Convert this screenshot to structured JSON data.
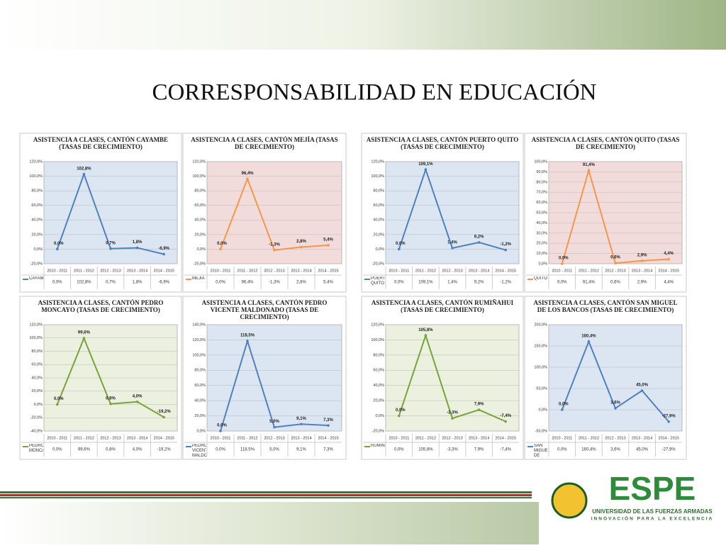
{
  "title": "CORRESPONSABILIDAD EN EDUCACIÓN",
  "logo": {
    "name": "ESPE",
    "university": "UNIVERSIDAD DE LAS FUERZAS ARMADAS",
    "motto": "INNOVACIÓN PARA LA EXCELENCIA"
  },
  "chart_data": [
    {
      "type": "line",
      "title": "ASISTENCIA A CLASES, CANTÓN CAYAMBE (TASAS DE CRECIMIENTO)",
      "categories": [
        "2010 - 2011",
        "2011 - 2012",
        "2012 - 2013",
        "2013 - 2014",
        "2014 - 2015"
      ],
      "series": [
        {
          "name": "CAYAMBE",
          "color": "#4f81bd",
          "values": [
            0,
            102.8,
            0.7,
            1.8,
            -6.9
          ],
          "value_labels": [
            "0,0%",
            "102,8%",
            "0,7%",
            "1,8%",
            "-6,9%"
          ]
        }
      ],
      "plot_background": "#dce6f2",
      "ylim": [
        -20,
        120
      ],
      "yticks": [
        {
          "value": -20,
          "label": "-20,0%"
        },
        {
          "value": 0,
          "label": "0,0%"
        },
        {
          "value": 20,
          "label": "20,0%"
        },
        {
          "value": 40,
          "label": "40,0%"
        },
        {
          "value": 60,
          "label": "60,0%"
        },
        {
          "value": 80,
          "label": "80,0%"
        },
        {
          "value": 100,
          "label": "100,0%"
        },
        {
          "value": 120,
          "label": "120,0%"
        }
      ],
      "grid": true
    },
    {
      "type": "line",
      "title": "ASISTENCIA A CLASES, CANTÓN MEJÍA (TASAS DE CRECIMIENTO)",
      "categories": [
        "2010 - 2011",
        "2011 - 2012",
        "2012 - 2013",
        "2013 - 2014",
        "2014 - 2015"
      ],
      "series": [
        {
          "name": "MEJIA",
          "color": "#f79646",
          "values": [
            0,
            96.4,
            -1.3,
            2.8,
            5.4
          ],
          "value_labels": [
            "0,0%",
            "96,4%",
            "-1,3%",
            "2,8%",
            "5,4%"
          ]
        }
      ],
      "plot_background": "#f2dcdb",
      "ylim": [
        -20,
        120
      ],
      "yticks": [
        {
          "value": -20,
          "label": "-20,0%"
        },
        {
          "value": 0,
          "label": "0,0%"
        },
        {
          "value": 20,
          "label": "20,0%"
        },
        {
          "value": 40,
          "label": "40,0%"
        },
        {
          "value": 60,
          "label": "60,0%"
        },
        {
          "value": 80,
          "label": "80,0%"
        },
        {
          "value": 100,
          "label": "100,0%"
        },
        {
          "value": 120,
          "label": "120,0%"
        }
      ],
      "grid": true
    },
    {
      "type": "line",
      "title": "ASISTENCIA A CLASES, CANTÓN PUERTO QUITO (TASAS DE CRECIMIENTO)",
      "categories": [
        "2010 - 2011",
        "2011 - 2012",
        "2012 - 2013",
        "2013 - 2014",
        "2014 - 2015"
      ],
      "series": [
        {
          "name": "PUERTO QUITO",
          "color": "#4f81bd",
          "values": [
            0,
            109.1,
            1.4,
            9.2,
            -1.2
          ],
          "value_labels": [
            "0,0%",
            "109,1%",
            "1,4%",
            "9,2%",
            "-1,2%"
          ]
        }
      ],
      "plot_background": "#dce6f2",
      "ylim": [
        -20,
        120
      ],
      "yticks": [
        {
          "value": -20,
          "label": "-20,0%"
        },
        {
          "value": 0,
          "label": "0,0%"
        },
        {
          "value": 20,
          "label": "20,0%"
        },
        {
          "value": 40,
          "label": "40,0%"
        },
        {
          "value": 60,
          "label": "60,0%"
        },
        {
          "value": 80,
          "label": "80,0%"
        },
        {
          "value": 100,
          "label": "100,0%"
        },
        {
          "value": 120,
          "label": "120,0%"
        }
      ],
      "grid": true
    },
    {
      "type": "line",
      "title": "ASISTENCIA A CLASES, CANTÓN QUITO (TASAS DE CRECIMIENTO)",
      "categories": [
        "2010 - 2011",
        "2011 - 2012",
        "2012 - 2013",
        "2013 - 2014",
        "2014 - 2015"
      ],
      "series": [
        {
          "name": "QUITO",
          "color": "#f79646",
          "values": [
            0,
            91.4,
            0.6,
            2.9,
            4.4
          ],
          "value_labels": [
            "0,0%",
            "91,4%",
            "0,6%",
            "2,9%",
            "4,4%"
          ]
        }
      ],
      "plot_background": "#f2dcdb",
      "ylim": [
        0,
        100
      ],
      "yticks": [
        {
          "value": 0,
          "label": "0,0%"
        },
        {
          "value": 10,
          "label": "10,0%"
        },
        {
          "value": 20,
          "label": "20,0%"
        },
        {
          "value": 30,
          "label": "30,0%"
        },
        {
          "value": 40,
          "label": "40,0%"
        },
        {
          "value": 50,
          "label": "50,0%"
        },
        {
          "value": 60,
          "label": "60,0%"
        },
        {
          "value": 70,
          "label": "70,0%"
        },
        {
          "value": 80,
          "label": "80,0%"
        },
        {
          "value": 90,
          "label": "90,0%"
        },
        {
          "value": 100,
          "label": "100,0%"
        }
      ],
      "grid": true
    },
    {
      "type": "line",
      "title": "ASISTENCIA A CLASES, CANTÓN PEDRO MONCAYO (TASAS DE CRECIMIENTO)",
      "categories": [
        "2010 - 2011",
        "2011 - 2012",
        "2012 - 2013",
        "2013 - 2014",
        "2014 - 2015"
      ],
      "series": [
        {
          "name": "PEDRO MONCAYO",
          "color": "#77a33a",
          "values": [
            0,
            99.6,
            0.8,
            4.0,
            -19.2
          ],
          "value_labels": [
            "0,0%",
            "99,6%",
            "0,8%",
            "4,0%",
            "-19,2%"
          ]
        }
      ],
      "plot_background": "#ebf1de",
      "ylim": [
        -40,
        120
      ],
      "yticks": [
        {
          "value": -40,
          "label": "-40,0%"
        },
        {
          "value": -20,
          "label": "-20,0%"
        },
        {
          "value": 0,
          "label": "0,0%"
        },
        {
          "value": 20,
          "label": "20,0%"
        },
        {
          "value": 40,
          "label": "40,0%"
        },
        {
          "value": 60,
          "label": "60,0%"
        },
        {
          "value": 80,
          "label": "80,0%"
        },
        {
          "value": 100,
          "label": "100,0%"
        },
        {
          "value": 120,
          "label": "120,0%"
        }
      ],
      "grid": true
    },
    {
      "type": "line",
      "title": "ASISTENCIA A CLASES, CANTÓN PEDRO VICENTE MALDONADO (TASAS DE CRECIMIENTO)",
      "categories": [
        "2010 - 2011",
        "2011 - 2012",
        "2012 - 2013",
        "2013 - 2014",
        "2014 - 2015"
      ],
      "series": [
        {
          "name": "PEDRO VICENTE MALDONADO",
          "color": "#4f81bd",
          "values": [
            0,
            118.5,
            5.0,
            9.1,
            7.3
          ],
          "value_labels": [
            "0,0%",
            "118,5%",
            "5,0%",
            "9,1%",
            "7,3%"
          ]
        }
      ],
      "plot_background": "#dce6f2",
      "ylim": [
        0,
        140
      ],
      "yticks": [
        {
          "value": 0,
          "label": "0,0%"
        },
        {
          "value": 20,
          "label": "20,0%"
        },
        {
          "value": 40,
          "label": "40,0%"
        },
        {
          "value": 60,
          "label": "60,0%"
        },
        {
          "value": 80,
          "label": "80,0%"
        },
        {
          "value": 100,
          "label": "100,0%"
        },
        {
          "value": 120,
          "label": "120,0%"
        },
        {
          "value": 140,
          "label": "140,0%"
        }
      ],
      "grid": true
    },
    {
      "type": "line",
      "title": "ASISTENCIA A CLASES, CANTÓN RUMIÑAHUI (TASAS DE CRECIMIENTO)",
      "categories": [
        "2010 - 2011",
        "2011 - 2012",
        "2012 - 2013",
        "2013 - 2014",
        "2014 - 2015"
      ],
      "series": [
        {
          "name": "RUMIÑAHUI",
          "color": "#77a33a",
          "values": [
            0,
            105.8,
            -3.3,
            7.9,
            -7.4
          ],
          "value_labels": [
            "0,0%",
            "105,8%",
            "-3,3%",
            "7,9%",
            "-7,4%"
          ]
        }
      ],
      "plot_background": "#ebf1de",
      "ylim": [
        -20,
        120
      ],
      "yticks": [
        {
          "value": -20,
          "label": "-20,0%"
        },
        {
          "value": 0,
          "label": "0,0%"
        },
        {
          "value": 20,
          "label": "20,0%"
        },
        {
          "value": 40,
          "label": "40,0%"
        },
        {
          "value": 60,
          "label": "60,0%"
        },
        {
          "value": 80,
          "label": "80,0%"
        },
        {
          "value": 100,
          "label": "100,0%"
        },
        {
          "value": 120,
          "label": "120,0%"
        }
      ],
      "grid": true
    },
    {
      "type": "line",
      "title": "ASISTENCIA A CLASES, CANTÓN SAN MIGUEL DE LOS BANCOS (TASAS DE CRECIMIENTO)",
      "categories": [
        "2010 - 2011",
        "2011 - 2012",
        "2012 - 2013",
        "2013 - 2014",
        "2014 - 2015"
      ],
      "series": [
        {
          "name": "SAN MIGUEL DE LOS BANCOS",
          "color": "#4f81bd",
          "values": [
            0,
            160.4,
            3.6,
            45.0,
            -27.9
          ],
          "value_labels": [
            "0,0%",
            "160,4%",
            "3,6%",
            "45,0%",
            "-27,9%"
          ]
        }
      ],
      "plot_background": "#dce6f2",
      "ylim": [
        -50,
        200
      ],
      "yticks": [
        {
          "value": -50,
          "label": "-50,0%"
        },
        {
          "value": 0,
          "label": "0,0%"
        },
        {
          "value": 50,
          "label": "50,0%"
        },
        {
          "value": 100,
          "label": "100,0%"
        },
        {
          "value": 150,
          "label": "150,0%"
        },
        {
          "value": 200,
          "label": "200,0%"
        }
      ],
      "grid": true
    }
  ]
}
